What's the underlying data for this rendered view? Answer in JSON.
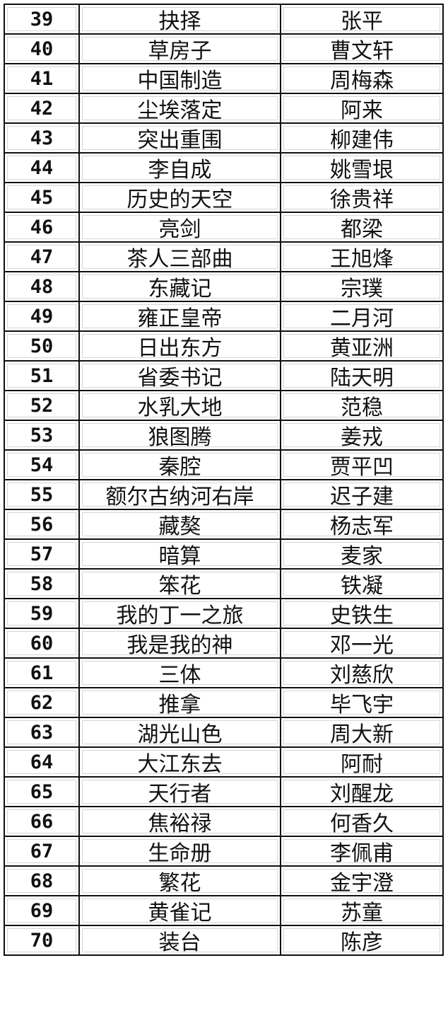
{
  "rows": [
    {
      "no": "39",
      "title": "抉择",
      "author": "张平"
    },
    {
      "no": "40",
      "title": "草房子",
      "author": "曹文轩"
    },
    {
      "no": "41",
      "title": "中国制造",
      "author": "周梅森"
    },
    {
      "no": "42",
      "title": "尘埃落定",
      "author": "阿来"
    },
    {
      "no": "43",
      "title": "突出重围",
      "author": "柳建伟"
    },
    {
      "no": "44",
      "title": "李自成",
      "author": "姚雪垠"
    },
    {
      "no": "45",
      "title": "历史的天空",
      "author": "徐贵祥"
    },
    {
      "no": "46",
      "title": "亮剑",
      "author": "都梁"
    },
    {
      "no": "47",
      "title": "茶人三部曲",
      "author": "王旭烽"
    },
    {
      "no": "48",
      "title": "东藏记",
      "author": "宗璞"
    },
    {
      "no": "49",
      "title": "雍正皇帝",
      "author": "二月河"
    },
    {
      "no": "50",
      "title": "日出东方",
      "author": "黄亚洲"
    },
    {
      "no": "51",
      "title": "省委书记",
      "author": "陆天明"
    },
    {
      "no": "52",
      "title": "水乳大地",
      "author": "范稳"
    },
    {
      "no": "53",
      "title": "狼图腾",
      "author": "姜戎"
    },
    {
      "no": "54",
      "title": "秦腔",
      "author": "贾平凹"
    },
    {
      "no": "55",
      "title": "额尔古纳河右岸",
      "author": "迟子建"
    },
    {
      "no": "56",
      "title": "藏獒",
      "author": "杨志军"
    },
    {
      "no": "57",
      "title": "暗算",
      "author": "麦家"
    },
    {
      "no": "58",
      "title": "笨花",
      "author": "铁凝"
    },
    {
      "no": "59",
      "title": "我的丁一之旅",
      "author": "史铁生"
    },
    {
      "no": "60",
      "title": "我是我的神",
      "author": "邓一光"
    },
    {
      "no": "61",
      "title": "三体",
      "author": "刘慈欣"
    },
    {
      "no": "62",
      "title": "推拿",
      "author": "毕飞宇"
    },
    {
      "no": "63",
      "title": "湖光山色",
      "author": "周大新"
    },
    {
      "no": "64",
      "title": "大江东去",
      "author": "阿耐"
    },
    {
      "no": "65",
      "title": "天行者",
      "author": "刘醒龙"
    },
    {
      "no": "66",
      "title": "焦裕禄",
      "author": "何香久"
    },
    {
      "no": "67",
      "title": "生命册",
      "author": "李佩甫"
    },
    {
      "no": "68",
      "title": "繁花",
      "author": "金宇澄"
    },
    {
      "no": "69",
      "title": "黄雀记",
      "author": "苏童"
    },
    {
      "no": "70",
      "title": "装台",
      "author": "陈彦"
    }
  ]
}
